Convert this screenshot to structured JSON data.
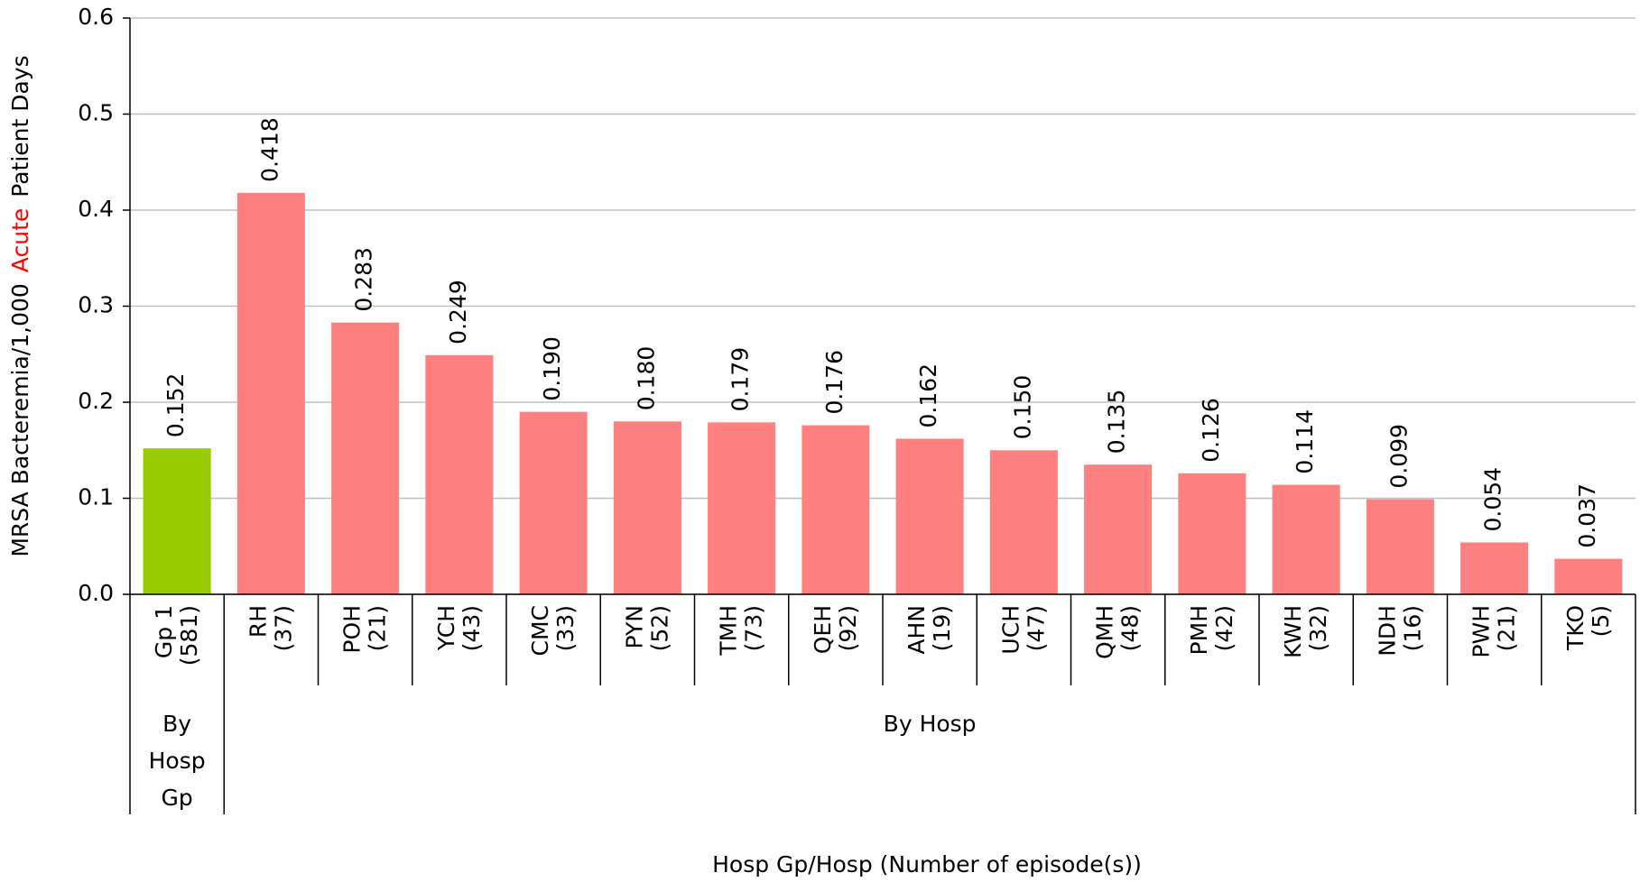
{
  "chart_data": {
    "type": "bar",
    "x_label": "Hosp Gp/Hosp (Number of episode(s))",
    "y_label_parts": [
      {
        "text": "MRSA Bacteremia/1,000",
        "color": "#000000"
      },
      {
        "text": "Acute",
        "color": "#ff0000"
      },
      {
        "text": "Patient Days",
        "color": "#000000"
      }
    ],
    "ylim": [
      0,
      0.6
    ],
    "yticks": [
      {
        "value": 0,
        "label": "0.0"
      },
      0.1,
      0.2,
      0.3,
      0.4,
      0.5,
      0.6
    ],
    "grid": true,
    "groups": [
      {
        "label": [
          "By",
          "Hosp",
          "Gp"
        ],
        "color": "#99cc00",
        "categories": [
          [
            "Gp 1",
            "(581)"
          ]
        ],
        "values": [
          0.152
        ],
        "value_labels": [
          "0.152"
        ]
      },
      {
        "label": [
          "By Hosp"
        ],
        "color": "#ff8080",
        "categories": [
          [
            "RH",
            "(37)"
          ],
          [
            "POH",
            "(21)"
          ],
          [
            "YCH",
            "(43)"
          ],
          [
            "CMC",
            "(33)"
          ],
          [
            "PYN",
            "(52)"
          ],
          [
            "TMH",
            "(73)"
          ],
          [
            "QEH",
            "(92)"
          ],
          [
            "AHN",
            "(19)"
          ],
          [
            "UCH",
            "(47)"
          ],
          [
            "QMH",
            "(48)"
          ],
          [
            "PMH",
            "(42)"
          ],
          [
            "KWH",
            "(32)"
          ],
          [
            "NDH",
            "(16)"
          ],
          [
            "PWH",
            "(21)"
          ],
          [
            "TKO",
            "(5)"
          ]
        ],
        "values": [
          0.418,
          0.283,
          0.249,
          0.19,
          0.18,
          0.179,
          0.176,
          0.162,
          0.15,
          0.135,
          0.126,
          0.114,
          0.099,
          0.054,
          0.037
        ],
        "value_labels": [
          "0.418",
          "0.283",
          "0.249",
          "0.190",
          "0.180",
          "0.179",
          "0.176",
          "0.162",
          "0.150",
          "0.135",
          "0.126",
          "0.114",
          "0.099",
          "0.054",
          "0.037"
        ]
      }
    ]
  }
}
